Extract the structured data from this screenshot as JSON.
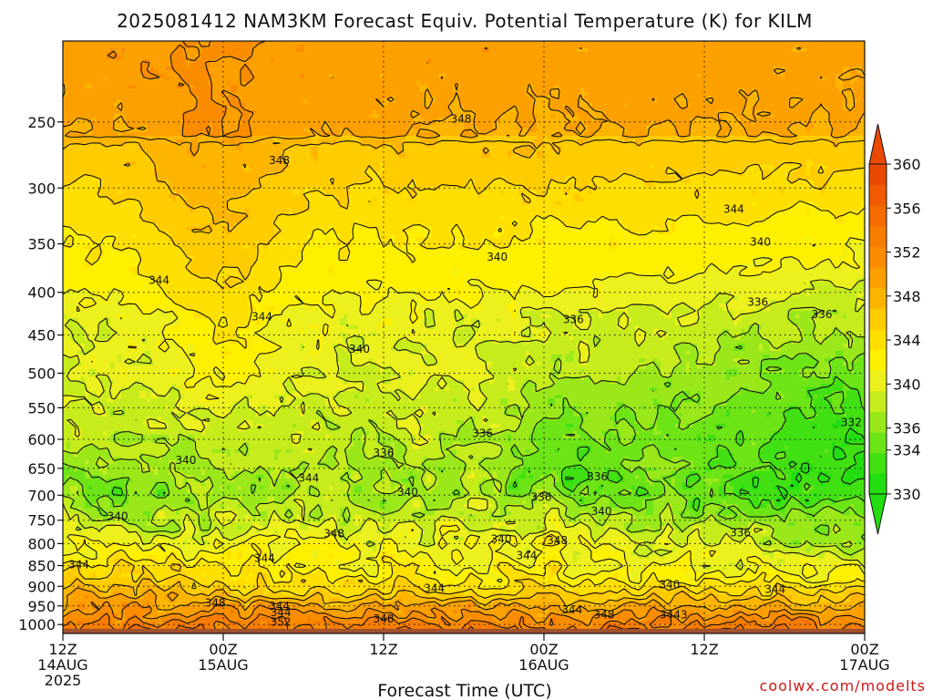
{
  "chart_data": {
    "type": "heatmap",
    "title": "2025081412 NAM3KM Forecast Equiv. Potential Temperature (K) for KILM",
    "xlabel": "Forecast Time (UTC)",
    "ylabel": "",
    "credit": "coolwx.com/modelts",
    "y_scale": "log",
    "ylim": [
      1025,
      200
    ],
    "y_ticks": [
      250,
      300,
      350,
      400,
      450,
      500,
      550,
      600,
      650,
      700,
      750,
      800,
      850,
      900,
      950,
      1000
    ],
    "y_tick_labels": [
      "250",
      "300",
      "350",
      "400",
      "450",
      "500",
      "550",
      "600",
      "650",
      "700",
      "750",
      "800",
      "850",
      "900",
      "950",
      "1000"
    ],
    "x_hours": [
      0,
      60
    ],
    "x_ticks": [
      {
        "hour": 0,
        "line1": "12Z",
        "line2": "14AUG",
        "line3": "2025"
      },
      {
        "hour": 12,
        "line1": "00Z",
        "line2": "15AUG",
        "line3": ""
      },
      {
        "hour": 24,
        "line1": "12Z",
        "line2": "",
        "line3": ""
      },
      {
        "hour": 36,
        "line1": "00Z",
        "line2": "16AUG",
        "line3": ""
      },
      {
        "hour": 48,
        "line1": "12Z",
        "line2": "",
        "line3": ""
      },
      {
        "hour": 60,
        "line1": "00Z",
        "line2": "17AUG",
        "line3": ""
      }
    ],
    "grid": true,
    "colorbar": {
      "levels": [
        330,
        332,
        334,
        336,
        338,
        340,
        342,
        344,
        346,
        348,
        350,
        352,
        354,
        356,
        358,
        360
      ],
      "labels": [
        "330",
        "334",
        "336",
        "340",
        "344",
        "348",
        "352",
        "356",
        "360"
      ],
      "label_values": [
        330,
        334,
        336,
        340,
        344,
        348,
        352,
        356,
        360
      ],
      "colors": [
        "#22dd10",
        "#40e012",
        "#6ce416",
        "#9ae81a",
        "#c6ec1c",
        "#ecf01c",
        "#fff000",
        "#ffdf00",
        "#ffcc00",
        "#fdb500",
        "#fca000",
        "#fa8c00",
        "#f77c00",
        "#f46c00",
        "#f05a00",
        "#ea4a00"
      ],
      "extend": "both"
    },
    "surface_color": "#a0522d",
    "contour_interval_K": 2,
    "contour_labels": [
      {
        "value": "348",
        "hour": 29.8,
        "p": 248
      },
      {
        "value": "348",
        "hour": 16.2,
        "p": 278
      },
      {
        "value": "344",
        "hour": 50.2,
        "p": 318
      },
      {
        "value": "340",
        "hour": 52.2,
        "p": 348
      },
      {
        "value": "340",
        "hour": 32.5,
        "p": 363
      },
      {
        "value": "344",
        "hour": 7.2,
        "p": 387
      },
      {
        "value": "336",
        "hour": 52.0,
        "p": 411
      },
      {
        "value": "336",
        "hour": 56.8,
        "p": 425
      },
      {
        "value": "344",
        "hour": 14.9,
        "p": 428
      },
      {
        "value": "336",
        "hour": 38.2,
        "p": 431
      },
      {
        "value": "340",
        "hour": 22.2,
        "p": 468
      },
      {
        "value": "336",
        "hour": 31.4,
        "p": 590
      },
      {
        "value": "332",
        "hour": 59.0,
        "p": 573
      },
      {
        "value": "336",
        "hour": 24.0,
        "p": 623
      },
      {
        "value": "340",
        "hour": 9.2,
        "p": 636
      },
      {
        "value": "336",
        "hour": 40.0,
        "p": 665
      },
      {
        "value": "344",
        "hour": 18.4,
        "p": 668
      },
      {
        "value": "340",
        "hour": 25.8,
        "p": 694
      },
      {
        "value": "336",
        "hour": 35.8,
        "p": 704
      },
      {
        "value": "340",
        "hour": 4.1,
        "p": 742
      },
      {
        "value": "340",
        "hour": 40.3,
        "p": 732
      },
      {
        "value": "348",
        "hour": 20.3,
        "p": 778
      },
      {
        "value": "336",
        "hour": 50.7,
        "p": 776
      },
      {
        "value": "340",
        "hour": 32.8,
        "p": 790
      },
      {
        "value": "348",
        "hour": 37.0,
        "p": 793
      },
      {
        "value": "344",
        "hour": 34.7,
        "p": 827
      },
      {
        "value": "344",
        "hour": 15.1,
        "p": 833
      },
      {
        "value": "344",
        "hour": 1.2,
        "p": 848
      },
      {
        "value": "344",
        "hour": 27.8,
        "p": 905
      },
      {
        "value": "340",
        "hour": 45.4,
        "p": 896
      },
      {
        "value": "344",
        "hour": 53.3,
        "p": 907
      },
      {
        "value": "348",
        "hour": 11.4,
        "p": 942
      },
      {
        "value": "344",
        "hour": 16.2,
        "p": 951
      },
      {
        "value": "344",
        "hour": 38.1,
        "p": 960
      },
      {
        "value": "344",
        "hour": 16.3,
        "p": 968
      },
      {
        "value": "348",
        "hour": 40.5,
        "p": 973
      },
      {
        "value": "3443",
        "hour": 45.7,
        "p": 973
      },
      {
        "value": "348",
        "hour": 24.0,
        "p": 985
      },
      {
        "value": "352",
        "hour": 16.3,
        "p": 993
      }
    ]
  }
}
